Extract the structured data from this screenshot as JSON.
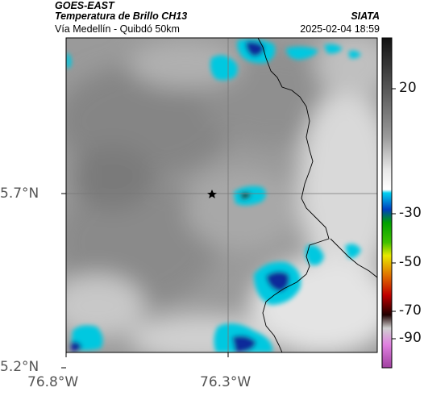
{
  "header": {
    "satellite": "GOES-EAST",
    "product": "Temperatura de Brillo CH13",
    "region": "Vía Medellín - Quibdó 50km",
    "brand": "SIATA",
    "timestamp": "2025-02-04 18:59"
  },
  "axes": {
    "x_ticks": [
      "76.8°W",
      "76.3°W"
    ],
    "y_ticks": [
      "5.7°N",
      "5.2°N"
    ]
  },
  "colorbar": {
    "ticks": [
      "20",
      "-30",
      "-50",
      "-70",
      "-90"
    ],
    "palette": [
      "#1a1a1a",
      "#5a5a5a",
      "#9a9a9a",
      "#d8d8d8",
      "#ffffff",
      "#00c8e0",
      "#0050d0",
      "#00a000",
      "#e0e000",
      "#e06000",
      "#c00000",
      "#300000",
      "#b0b0b0",
      "#c060c0"
    ]
  },
  "colors": {
    "cold_cloud_cyan": "#00c8e0",
    "cold_cloud_blue": "#0a2a9a",
    "border_line": "#000000"
  },
  "marker": {
    "icon": "star-icon"
  }
}
